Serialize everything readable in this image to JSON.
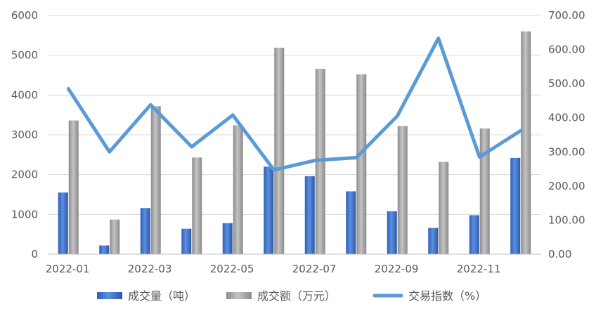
{
  "chart_data": {
    "type": "bar",
    "categories": [
      "2022-01",
      "2022-02",
      "2022-03",
      "2022-04",
      "2022-05",
      "2022-06",
      "2022-07",
      "2022-08",
      "2022-09",
      "2022-10",
      "2022-11",
      "2022-12"
    ],
    "x_tick_labels": [
      "2022-01",
      "2022-03",
      "2022-05",
      "2022-07",
      "2022-09",
      "2022-11"
    ],
    "y_left": {
      "ticks": [
        "0",
        "1000",
        "2000",
        "3000",
        "4000",
        "5000",
        "6000"
      ],
      "range": [
        0,
        6000
      ]
    },
    "y_right": {
      "ticks": [
        "0.00",
        "100.00",
        "200.00",
        "300.00",
        "400.00",
        "500.00",
        "600.00",
        "700.00"
      ],
      "range": [
        0,
        700
      ]
    },
    "grid": true,
    "legend_position": "bottom",
    "series": [
      {
        "name": "成交量（吨）",
        "type": "bar",
        "axis": "left",
        "color": "#3f6fc9",
        "values": [
          1550,
          220,
          1160,
          640,
          780,
          2200,
          1960,
          1580,
          1080,
          660,
          980,
          2420
        ]
      },
      {
        "name": "成交额（万元）",
        "type": "bar",
        "axis": "left",
        "color": "#a6a6a6",
        "values": [
          3360,
          870,
          3720,
          2430,
          3240,
          5190,
          4660,
          4520,
          3220,
          2320,
          3160,
          5600
        ]
      },
      {
        "name": "交易指数（%）",
        "type": "line",
        "axis": "right",
        "color": "#5b9bd5",
        "values": [
          485,
          300,
          438,
          315,
          408,
          247,
          275,
          283,
          405,
          633,
          285,
          362
        ]
      }
    ]
  }
}
